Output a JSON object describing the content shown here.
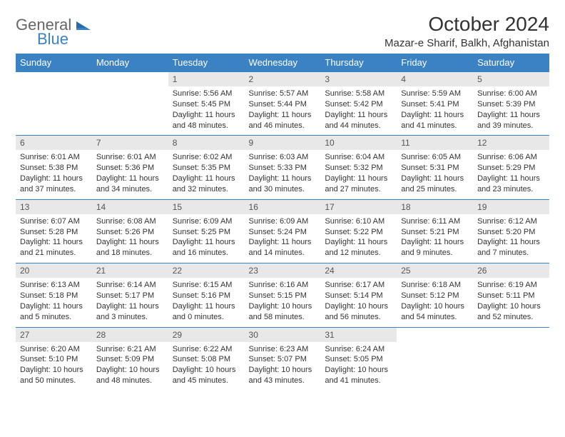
{
  "logo": {
    "word1": "General",
    "word2": "Blue"
  },
  "title": "October 2024",
  "location": "Mazar-e Sharif, Balkh, Afghanistan",
  "colors": {
    "header_bg": "#3b82c4",
    "header_text": "#ffffff",
    "daynum_bg": "#e8e8e8",
    "daynum_text": "#555555",
    "body_text": "#333333",
    "divider": "#3b82c4"
  },
  "day_headers": [
    "Sunday",
    "Monday",
    "Tuesday",
    "Wednesday",
    "Thursday",
    "Friday",
    "Saturday"
  ],
  "weeks": [
    [
      null,
      null,
      {
        "n": "1",
        "sunrise": "5:56 AM",
        "sunset": "5:45 PM",
        "dl": "11 hours and 48 minutes."
      },
      {
        "n": "2",
        "sunrise": "5:57 AM",
        "sunset": "5:44 PM",
        "dl": "11 hours and 46 minutes."
      },
      {
        "n": "3",
        "sunrise": "5:58 AM",
        "sunset": "5:42 PM",
        "dl": "11 hours and 44 minutes."
      },
      {
        "n": "4",
        "sunrise": "5:59 AM",
        "sunset": "5:41 PM",
        "dl": "11 hours and 41 minutes."
      },
      {
        "n": "5",
        "sunrise": "6:00 AM",
        "sunset": "5:39 PM",
        "dl": "11 hours and 39 minutes."
      }
    ],
    [
      {
        "n": "6",
        "sunrise": "6:01 AM",
        "sunset": "5:38 PM",
        "dl": "11 hours and 37 minutes."
      },
      {
        "n": "7",
        "sunrise": "6:01 AM",
        "sunset": "5:36 PM",
        "dl": "11 hours and 34 minutes."
      },
      {
        "n": "8",
        "sunrise": "6:02 AM",
        "sunset": "5:35 PM",
        "dl": "11 hours and 32 minutes."
      },
      {
        "n": "9",
        "sunrise": "6:03 AM",
        "sunset": "5:33 PM",
        "dl": "11 hours and 30 minutes."
      },
      {
        "n": "10",
        "sunrise": "6:04 AM",
        "sunset": "5:32 PM",
        "dl": "11 hours and 27 minutes."
      },
      {
        "n": "11",
        "sunrise": "6:05 AM",
        "sunset": "5:31 PM",
        "dl": "11 hours and 25 minutes."
      },
      {
        "n": "12",
        "sunrise": "6:06 AM",
        "sunset": "5:29 PM",
        "dl": "11 hours and 23 minutes."
      }
    ],
    [
      {
        "n": "13",
        "sunrise": "6:07 AM",
        "sunset": "5:28 PM",
        "dl": "11 hours and 21 minutes."
      },
      {
        "n": "14",
        "sunrise": "6:08 AM",
        "sunset": "5:26 PM",
        "dl": "11 hours and 18 minutes."
      },
      {
        "n": "15",
        "sunrise": "6:09 AM",
        "sunset": "5:25 PM",
        "dl": "11 hours and 16 minutes."
      },
      {
        "n": "16",
        "sunrise": "6:09 AM",
        "sunset": "5:24 PM",
        "dl": "11 hours and 14 minutes."
      },
      {
        "n": "17",
        "sunrise": "6:10 AM",
        "sunset": "5:22 PM",
        "dl": "11 hours and 12 minutes."
      },
      {
        "n": "18",
        "sunrise": "6:11 AM",
        "sunset": "5:21 PM",
        "dl": "11 hours and 9 minutes."
      },
      {
        "n": "19",
        "sunrise": "6:12 AM",
        "sunset": "5:20 PM",
        "dl": "11 hours and 7 minutes."
      }
    ],
    [
      {
        "n": "20",
        "sunrise": "6:13 AM",
        "sunset": "5:18 PM",
        "dl": "11 hours and 5 minutes."
      },
      {
        "n": "21",
        "sunrise": "6:14 AM",
        "sunset": "5:17 PM",
        "dl": "11 hours and 3 minutes."
      },
      {
        "n": "22",
        "sunrise": "6:15 AM",
        "sunset": "5:16 PM",
        "dl": "11 hours and 0 minutes."
      },
      {
        "n": "23",
        "sunrise": "6:16 AM",
        "sunset": "5:15 PM",
        "dl": "10 hours and 58 minutes."
      },
      {
        "n": "24",
        "sunrise": "6:17 AM",
        "sunset": "5:14 PM",
        "dl": "10 hours and 56 minutes."
      },
      {
        "n": "25",
        "sunrise": "6:18 AM",
        "sunset": "5:12 PM",
        "dl": "10 hours and 54 minutes."
      },
      {
        "n": "26",
        "sunrise": "6:19 AM",
        "sunset": "5:11 PM",
        "dl": "10 hours and 52 minutes."
      }
    ],
    [
      {
        "n": "27",
        "sunrise": "6:20 AM",
        "sunset": "5:10 PM",
        "dl": "10 hours and 50 minutes."
      },
      {
        "n": "28",
        "sunrise": "6:21 AM",
        "sunset": "5:09 PM",
        "dl": "10 hours and 48 minutes."
      },
      {
        "n": "29",
        "sunrise": "6:22 AM",
        "sunset": "5:08 PM",
        "dl": "10 hours and 45 minutes."
      },
      {
        "n": "30",
        "sunrise": "6:23 AM",
        "sunset": "5:07 PM",
        "dl": "10 hours and 43 minutes."
      },
      {
        "n": "31",
        "sunrise": "6:24 AM",
        "sunset": "5:05 PM",
        "dl": "10 hours and 41 minutes."
      },
      null,
      null
    ]
  ],
  "labels": {
    "sunrise": "Sunrise: ",
    "sunset": "Sunset: ",
    "daylight": "Daylight: "
  }
}
